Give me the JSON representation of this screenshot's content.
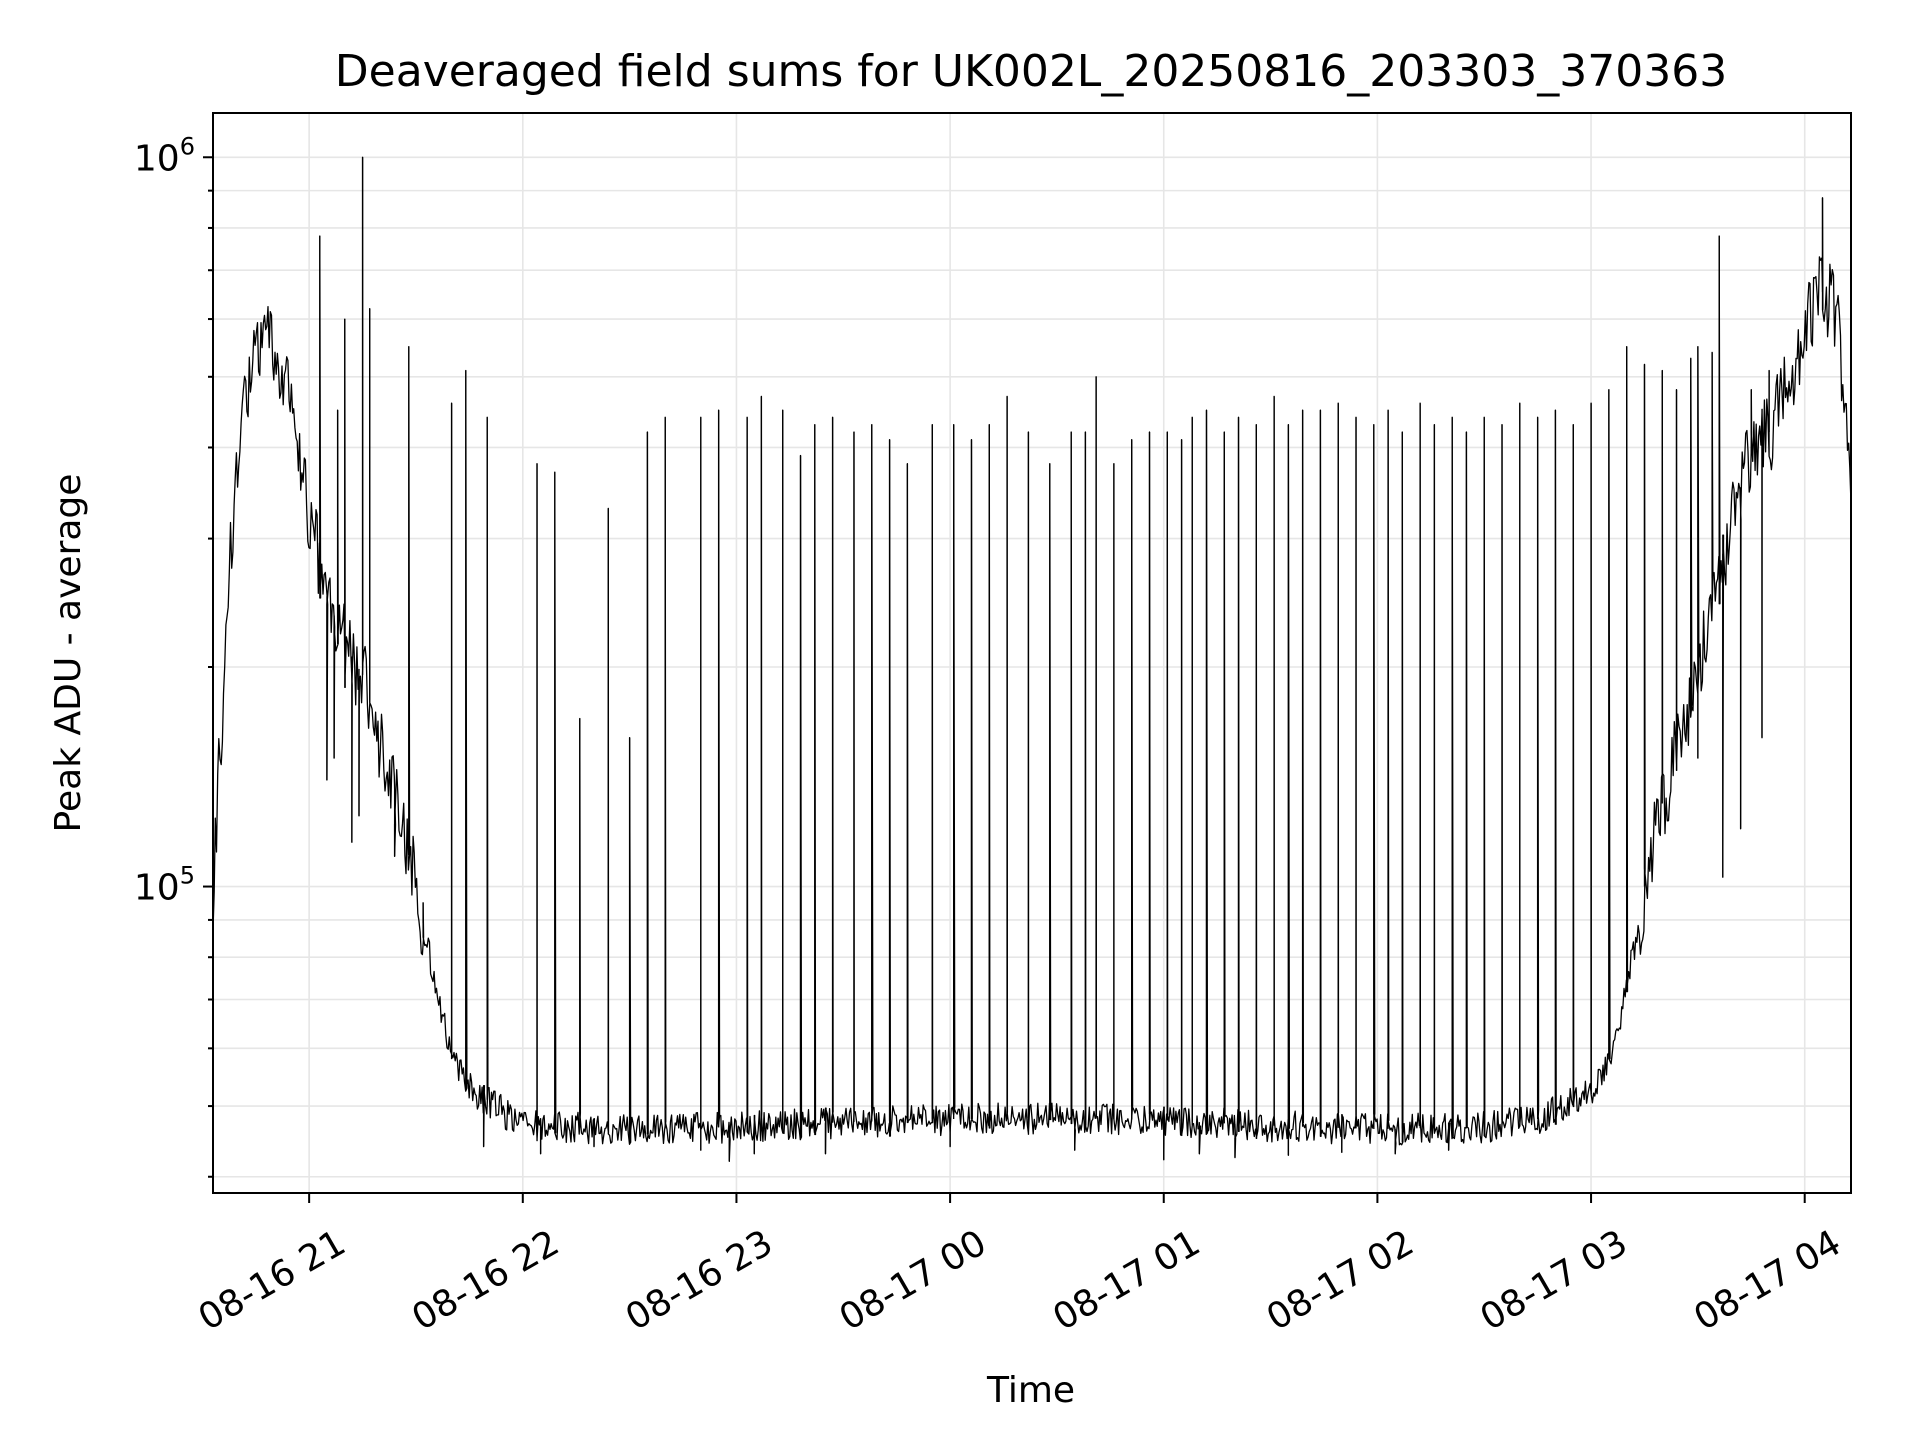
{
  "chart_data": {
    "type": "line",
    "title": "Deaveraged field sums for UK002L_20250816_203303_370363",
    "xlabel": "Time",
    "ylabel": "Peak ADU - average",
    "yscale": "log",
    "ylim": [
      38000,
      1150000
    ],
    "xlim": [
      "2025-08-16 20:33",
      "2025-08-17 04:13"
    ],
    "grid": true,
    "line_color": "#000000",
    "grid_color": "#e6e6e6",
    "x_ticks": [
      {
        "t": "2025-08-16 21:00",
        "label": "08-16 21"
      },
      {
        "t": "2025-08-16 22:00",
        "label": "08-16 22"
      },
      {
        "t": "2025-08-16 23:00",
        "label": "08-16 23"
      },
      {
        "t": "2025-08-17 00:00",
        "label": "08-17 00"
      },
      {
        "t": "2025-08-17 01:00",
        "label": "08-17 01"
      },
      {
        "t": "2025-08-17 02:00",
        "label": "08-17 02"
      },
      {
        "t": "2025-08-17 03:00",
        "label": "08-17 03"
      },
      {
        "t": "2025-08-17 04:00",
        "label": "08-17 04"
      }
    ],
    "y_major_ticks": [
      {
        "value": 100000,
        "base": "10",
        "exp": "5"
      },
      {
        "value": 1000000,
        "base": "10",
        "exp": "6"
      }
    ],
    "series": [
      {
        "points": [
          [
            "2025-08-16 20:33",
            100000
          ],
          [
            "2025-08-16 20:36",
            190000
          ],
          [
            "2025-08-16 20:38",
            300000
          ],
          [
            "2025-08-16 20:40",
            390000
          ],
          [
            "2025-08-16 20:42",
            460000
          ],
          [
            "2025-08-16 20:45",
            530000
          ],
          [
            "2025-08-16 20:48",
            560000
          ],
          [
            "2025-08-16 20:51",
            540000
          ],
          [
            "2025-08-16 20:54",
            480000
          ],
          [
            "2025-08-16 20:57",
            400000
          ],
          [
            "2025-08-16 21:00",
            320000
          ],
          [
            "2025-08-16 21:05",
            250000
          ],
          [
            "2025-08-16 21:10",
            215000
          ],
          [
            "2025-08-16 21:15",
            195000
          ],
          [
            "2025-08-16 21:20",
            160000
          ],
          [
            "2025-08-16 21:25",
            130000
          ],
          [
            "2025-08-16 21:30",
            100000
          ],
          [
            "2025-08-16 21:35",
            75000
          ],
          [
            "2025-08-16 21:40",
            58000
          ],
          [
            "2025-08-16 21:45",
            53000
          ],
          [
            "2025-08-16 21:50",
            51000
          ],
          [
            "2025-08-16 22:00",
            47000
          ],
          [
            "2025-08-16 22:30",
            46500
          ],
          [
            "2025-08-16 23:00",
            46800
          ],
          [
            "2025-08-16 23:30",
            47500
          ],
          [
            "2025-08-17 00:00",
            48000
          ],
          [
            "2025-08-17 00:30",
            48200
          ],
          [
            "2025-08-17 01:00",
            47800
          ],
          [
            "2025-08-17 01:30",
            47000
          ],
          [
            "2025-08-17 02:00",
            46500
          ],
          [
            "2025-08-17 02:30",
            46800
          ],
          [
            "2025-08-17 02:45",
            48000
          ],
          [
            "2025-08-17 03:00",
            52000
          ],
          [
            "2025-08-17 03:05",
            58000
          ],
          [
            "2025-08-17 03:10",
            72000
          ],
          [
            "2025-08-17 03:15",
            100000
          ],
          [
            "2025-08-17 03:20",
            130000
          ],
          [
            "2025-08-17 03:25",
            160000
          ],
          [
            "2025-08-17 03:30",
            200000
          ],
          [
            "2025-08-17 03:35",
            260000
          ],
          [
            "2025-08-17 03:40",
            330000
          ],
          [
            "2025-08-17 03:45",
            390000
          ],
          [
            "2025-08-17 03:50",
            420000
          ],
          [
            "2025-08-17 03:55",
            480000
          ],
          [
            "2025-08-17 04:00",
            570000
          ],
          [
            "2025-08-17 04:03",
            640000
          ],
          [
            "2025-08-17 04:06",
            660000
          ],
          [
            "2025-08-17 04:09",
            600000
          ],
          [
            "2025-08-17 04:11",
            480000
          ],
          [
            "2025-08-17 04:13",
            350000
          ]
        ],
        "spikes": [
          [
            "2025-08-16 21:03",
            780000
          ],
          [
            "2025-08-16 21:08",
            450000
          ],
          [
            "2025-08-16 21:10",
            600000
          ],
          [
            "2025-08-16 21:15",
            1000000
          ],
          [
            "2025-08-16 21:17",
            620000
          ],
          [
            "2025-08-16 21:28",
            550000
          ],
          [
            "2025-08-16 21:40",
            460000
          ],
          [
            "2025-08-16 21:44",
            510000
          ],
          [
            "2025-08-16 21:50",
            440000
          ],
          [
            "2025-08-16 22:04",
            380000
          ],
          [
            "2025-08-16 22:09",
            370000
          ],
          [
            "2025-08-16 22:16",
            170000
          ],
          [
            "2025-08-16 22:24",
            330000
          ],
          [
            "2025-08-16 22:30",
            160000
          ],
          [
            "2025-08-16 22:35",
            420000
          ],
          [
            "2025-08-16 22:40",
            440000
          ],
          [
            "2025-08-16 22:50",
            440000
          ],
          [
            "2025-08-16 22:55",
            450000
          ],
          [
            "2025-08-16 23:03",
            440000
          ],
          [
            "2025-08-16 23:07",
            470000
          ],
          [
            "2025-08-16 23:13",
            450000
          ],
          [
            "2025-08-16 23:18",
            390000
          ],
          [
            "2025-08-16 23:22",
            430000
          ],
          [
            "2025-08-16 23:27",
            440000
          ],
          [
            "2025-08-16 23:33",
            420000
          ],
          [
            "2025-08-16 23:38",
            430000
          ],
          [
            "2025-08-16 23:43",
            410000
          ],
          [
            "2025-08-16 23:48",
            380000
          ],
          [
            "2025-08-16 23:55",
            430000
          ],
          [
            "2025-08-17 00:01",
            430000
          ],
          [
            "2025-08-17 00:06",
            410000
          ],
          [
            "2025-08-17 00:11",
            430000
          ],
          [
            "2025-08-17 00:16",
            470000
          ],
          [
            "2025-08-17 00:22",
            420000
          ],
          [
            "2025-08-17 00:28",
            380000
          ],
          [
            "2025-08-17 00:34",
            420000
          ],
          [
            "2025-08-17 00:38",
            420000
          ],
          [
            "2025-08-17 00:41",
            500000
          ],
          [
            "2025-08-17 00:46",
            380000
          ],
          [
            "2025-08-17 00:51",
            410000
          ],
          [
            "2025-08-17 00:56",
            420000
          ],
          [
            "2025-08-17 01:01",
            420000
          ],
          [
            "2025-08-17 01:05",
            410000
          ],
          [
            "2025-08-17 01:08",
            440000
          ],
          [
            "2025-08-17 01:12",
            450000
          ],
          [
            "2025-08-17 01:17",
            420000
          ],
          [
            "2025-08-17 01:21",
            440000
          ],
          [
            "2025-08-17 01:26",
            430000
          ],
          [
            "2025-08-17 01:31",
            470000
          ],
          [
            "2025-08-17 01:35",
            430000
          ],
          [
            "2025-08-17 01:39",
            450000
          ],
          [
            "2025-08-17 01:44",
            450000
          ],
          [
            "2025-08-17 01:49",
            460000
          ],
          [
            "2025-08-17 01:54",
            440000
          ],
          [
            "2025-08-17 01:59",
            430000
          ],
          [
            "2025-08-17 02:03",
            450000
          ],
          [
            "2025-08-17 02:07",
            420000
          ],
          [
            "2025-08-17 02:12",
            460000
          ],
          [
            "2025-08-17 02:16",
            430000
          ],
          [
            "2025-08-17 02:21",
            440000
          ],
          [
            "2025-08-17 02:25",
            420000
          ],
          [
            "2025-08-17 02:30",
            440000
          ],
          [
            "2025-08-17 02:35",
            430000
          ],
          [
            "2025-08-17 02:40",
            460000
          ],
          [
            "2025-08-17 02:45",
            440000
          ],
          [
            "2025-08-17 02:50",
            450000
          ],
          [
            "2025-08-17 02:55",
            430000
          ],
          [
            "2025-08-17 03:00",
            460000
          ],
          [
            "2025-08-17 03:05",
            480000
          ],
          [
            "2025-08-17 03:10",
            550000
          ],
          [
            "2025-08-17 03:15",
            520000
          ],
          [
            "2025-08-17 03:20",
            510000
          ],
          [
            "2025-08-17 03:24",
            480000
          ],
          [
            "2025-08-17 03:28",
            530000
          ],
          [
            "2025-08-17 03:30",
            550000
          ],
          [
            "2025-08-17 03:34",
            540000
          ],
          [
            "2025-08-17 03:36",
            780000
          ],
          [
            "2025-08-17 03:45",
            480000
          ],
          [
            "2025-08-17 03:50",
            510000
          ],
          [
            "2025-08-17 04:05",
            880000
          ]
        ],
        "dips": [
          [
            "2025-08-16 21:05",
            140000
          ],
          [
            "2025-08-16 21:07",
            150000
          ],
          [
            "2025-08-16 21:12",
            115000
          ],
          [
            "2025-08-16 21:14",
            125000
          ],
          [
            "2025-08-16 21:24",
            110000
          ],
          [
            "2025-08-16 21:32",
            95000
          ],
          [
            "2025-08-16 21:49",
            44000
          ],
          [
            "2025-08-16 22:05",
            43000
          ],
          [
            "2025-08-16 22:20",
            44000
          ],
          [
            "2025-08-16 22:50",
            43500
          ],
          [
            "2025-08-16 22:58",
            42000
          ],
          [
            "2025-08-16 23:05",
            43000
          ],
          [
            "2025-08-16 23:25",
            43000
          ],
          [
            "2025-08-17 00:00",
            44000
          ],
          [
            "2025-08-17 00:35",
            43500
          ],
          [
            "2025-08-17 01:00",
            42200
          ],
          [
            "2025-08-17 01:10",
            43000
          ],
          [
            "2025-08-17 01:20",
            42500
          ],
          [
            "2025-08-17 01:35",
            42800
          ],
          [
            "2025-08-17 01:50",
            43200
          ],
          [
            "2025-08-17 02:05",
            43000
          ],
          [
            "2025-08-17 02:20",
            43500
          ],
          [
            "2025-08-17 03:30",
            150000
          ],
          [
            "2025-08-17 03:37",
            103000
          ],
          [
            "2025-08-17 03:42",
            120000
          ],
          [
            "2025-08-17 03:48",
            160000
          ]
        ]
      }
    ]
  }
}
